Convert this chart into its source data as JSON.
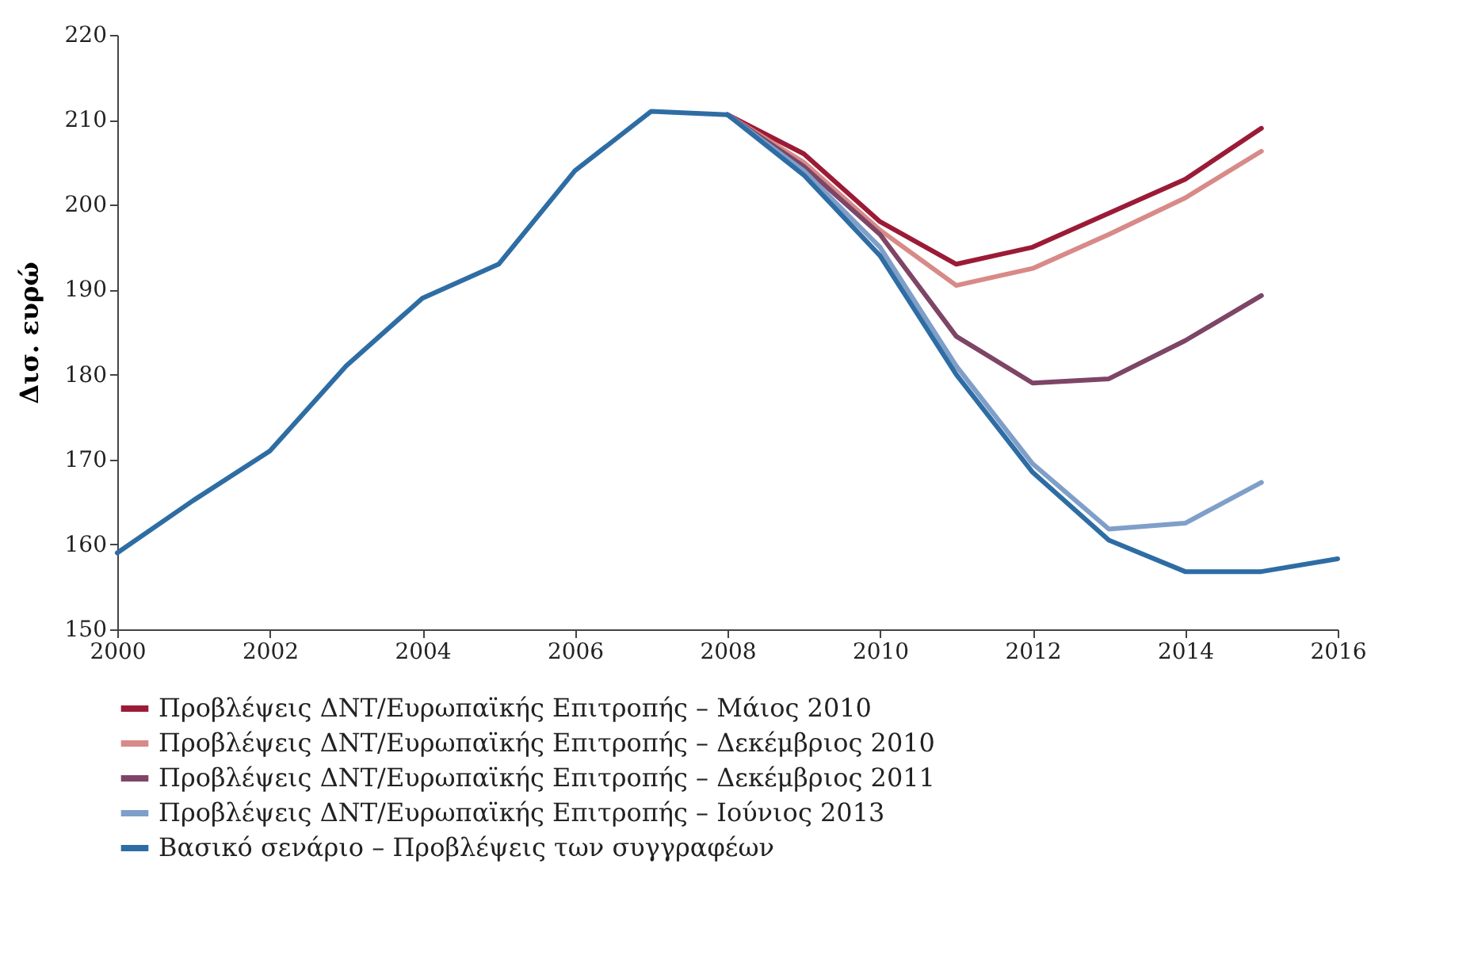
{
  "chart_data": {
    "type": "line",
    "ylabel": "Δισ. ευρώ",
    "xlim": [
      2000,
      2016
    ],
    "xticks": [
      2000,
      2002,
      2004,
      2006,
      2008,
      2010,
      2012,
      2014,
      2016
    ],
    "ylim": [
      150,
      220
    ],
    "yticks": [
      150,
      160,
      170,
      180,
      190,
      200,
      210,
      220
    ],
    "grid": false,
    "legend": "bottom",
    "line_style": "solid",
    "series": [
      {
        "name": "Προβλέψεις ΔΝΤ/Ευρωπαϊκής Επιτροπής – Μάιος 2010",
        "color": "#9b1b36",
        "x": [
          2008,
          2009,
          2010,
          2011,
          2012,
          2013,
          2014,
          2015
        ],
        "values": [
          210.6,
          206,
          198,
          193,
          195,
          199,
          203,
          209
        ]
      },
      {
        "name": "Προβλέψεις ΔΝΤ/Ευρωπαϊκής Επιτροπής – Δεκέμβριος 2010",
        "color": "#d88a88",
        "x": [
          2008,
          2009,
          2010,
          2011,
          2012,
          2013,
          2014,
          2015
        ],
        "values": [
          210.6,
          205,
          197,
          190.5,
          192.5,
          196.5,
          200.8,
          206.3
        ]
      },
      {
        "name": "Προβλέψεις ΔΝΤ/Ευρωπαϊκής Επιτροπής – Δεκέμβριος 2011",
        "color": "#7d4566",
        "x": [
          2008,
          2009,
          2010,
          2011,
          2012,
          2013,
          2014,
          2015
        ],
        "values": [
          210.6,
          204.5,
          196.5,
          184.5,
          179,
          179.5,
          184,
          189.3
        ]
      },
      {
        "name": "Προβλέψεις ΔΝΤ/Ευρωπαϊκής Επιτροπής – Ιούνιος 2013",
        "color": "#7f9fc9",
        "x": [
          2008,
          2009,
          2010,
          2011,
          2012,
          2013,
          2014,
          2015
        ],
        "values": [
          210.6,
          204,
          195,
          181,
          169.5,
          161.8,
          162.5,
          167.3
        ]
      },
      {
        "name": "Βασικό σενάριο – Προβλέψεις των συγγραφέων",
        "color": "#2e6da4",
        "x": [
          2000,
          2001,
          2002,
          2003,
          2004,
          2005,
          2006,
          2007,
          2008,
          2009,
          2010,
          2011,
          2012,
          2013,
          2014,
          2015,
          2016
        ],
        "values": [
          159,
          165.2,
          171,
          181,
          189,
          193,
          204,
          211,
          210.6,
          203.5,
          194,
          180,
          168.5,
          160.5,
          156.8,
          156.8,
          158.3
        ]
      }
    ]
  }
}
